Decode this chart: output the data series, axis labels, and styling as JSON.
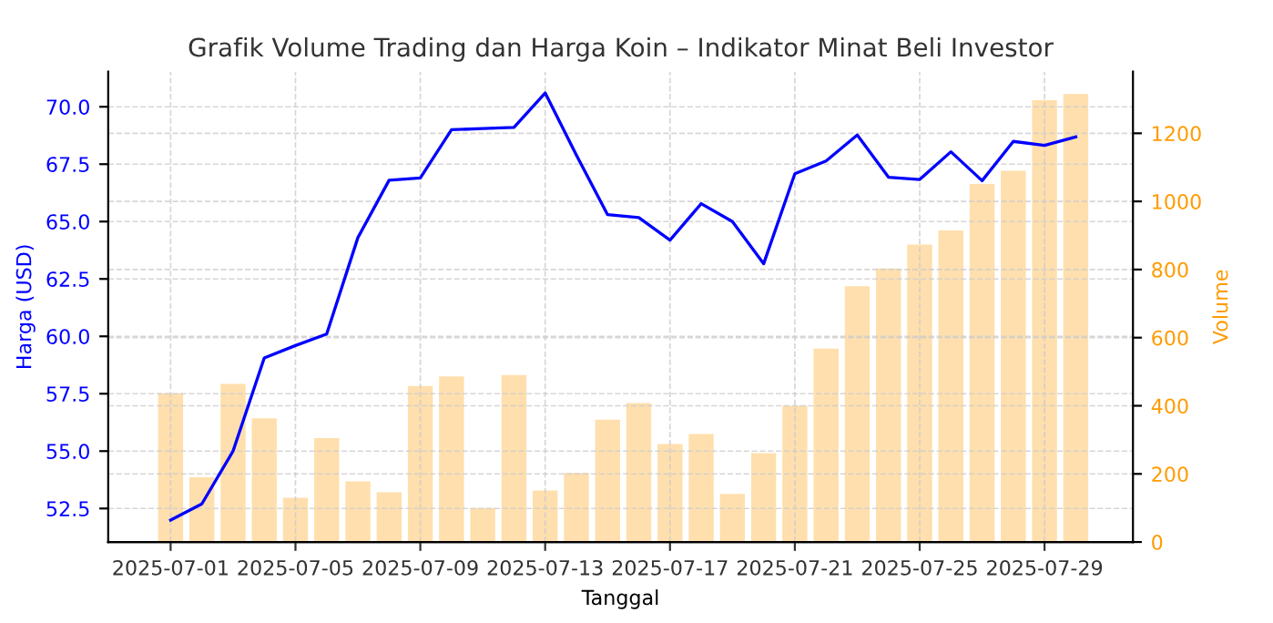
{
  "chart_data": {
    "type": "line",
    "title": "Grafik Volume Trading dan Harga Koin – Indikator Minat Beli Investor",
    "xlabel": "Tanggal",
    "ylabel": "Harga (USD)",
    "y2label": "Volume",
    "x": [
      "2025-07-01",
      "2025-07-02",
      "2025-07-03",
      "2025-07-04",
      "2025-07-05",
      "2025-07-06",
      "2025-07-07",
      "2025-07-08",
      "2025-07-09",
      "2025-07-10",
      "2025-07-11",
      "2025-07-12",
      "2025-07-13",
      "2025-07-14",
      "2025-07-15",
      "2025-07-16",
      "2025-07-17",
      "2025-07-18",
      "2025-07-19",
      "2025-07-20",
      "2025-07-21",
      "2025-07-22",
      "2025-07-23",
      "2025-07-24",
      "2025-07-25",
      "2025-07-26",
      "2025-07-27",
      "2025-07-28",
      "2025-07-29",
      "2025-07-30"
    ],
    "series": [
      {
        "color": "#0000ff",
        "values": [
          52.0,
          52.7,
          55.0,
          59.06,
          59.6,
          60.1,
          64.3,
          66.8,
          66.9,
          69.0,
          69.05,
          69.1,
          70.6,
          67.9,
          65.3,
          65.17,
          64.19,
          65.78,
          65.0,
          63.16,
          67.08,
          67.64,
          68.77,
          66.93,
          66.83,
          68.04,
          66.78,
          68.49,
          68.32,
          68.69
        ]
      },
      {
        "type": "bar",
        "axis": "y2",
        "color": "#ffdfad",
        "values": [
          437,
          190,
          464,
          363,
          130,
          305,
          178,
          146,
          458,
          486,
          100,
          490,
          151,
          203,
          359,
          408,
          288,
          317,
          141,
          261,
          400,
          568,
          751,
          803,
          873,
          915,
          1051,
          1090,
          1297,
          1315
        ]
      }
    ],
    "xlim": [
      "2025-06-29",
      "2025-07-31T20:00"
    ],
    "xticks": [
      "2025-07-01",
      "2025-07-05",
      "2025-07-09",
      "2025-07-13",
      "2025-07-17",
      "2025-07-21",
      "2025-07-25",
      "2025-07-29"
    ],
    "ylim": [
      51.04,
      71.53
    ],
    "yticks": [
      52.5,
      {
        "value": 55,
        "label": "55.0"
      },
      57.5,
      {
        "value": 60,
        "label": "60.0"
      },
      62.5,
      {
        "value": 65,
        "label": "65.0"
      },
      67.5,
      {
        "value": 70,
        "label": "70.0"
      }
    ],
    "y2lim": [
      0,
      1381
    ],
    "y2ticks": [
      0,
      200,
      400,
      600,
      800,
      1000,
      1200
    ],
    "grid": true,
    "line_style": "solid",
    "marker": "none"
  }
}
